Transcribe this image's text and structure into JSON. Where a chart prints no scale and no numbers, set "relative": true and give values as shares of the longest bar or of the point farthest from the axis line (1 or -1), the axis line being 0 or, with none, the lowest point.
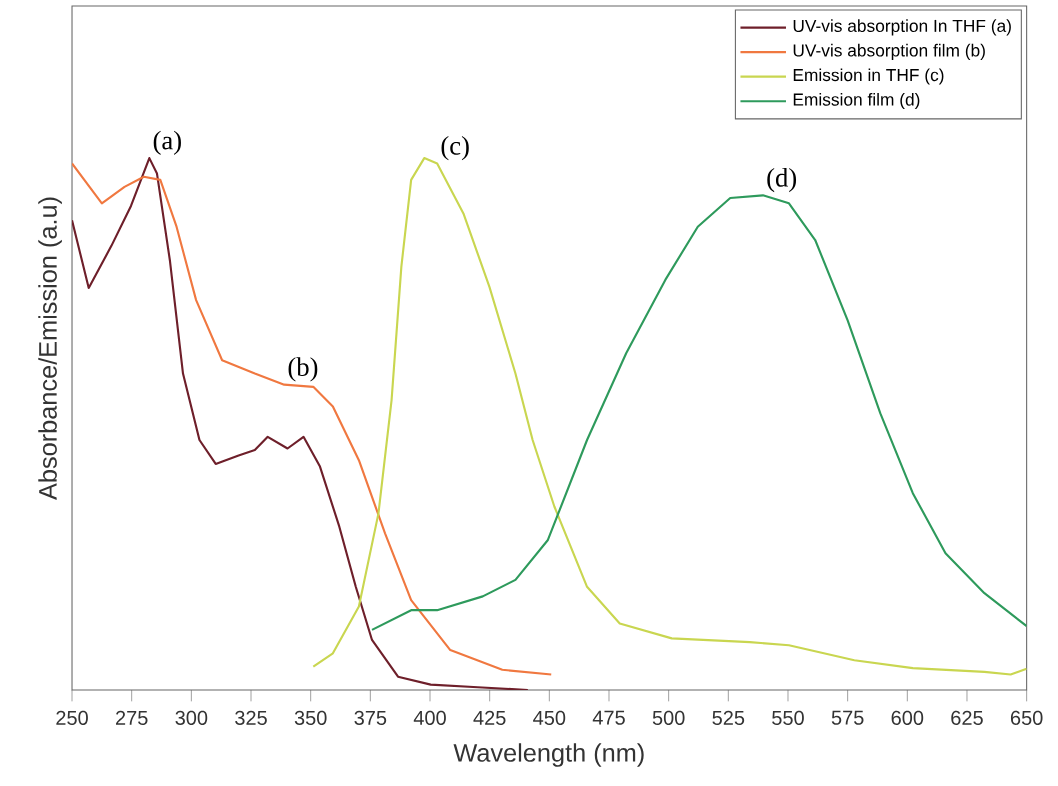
{
  "chart_data": {
    "type": "line",
    "relative": true,
    "xlabel": "Wavelength (nm)",
    "ylabel": "Absorbance/Emission (a.u)",
    "xlim": [
      250,
      650
    ],
    "xticks": [
      250,
      275,
      300,
      325,
      350,
      375,
      400,
      425,
      450,
      475,
      500,
      525,
      550,
      575,
      600,
      625,
      650
    ],
    "legend": "top right",
    "series": [
      {
        "name": "UV-vis absorption In THF (a)",
        "color": "#6e1f2a",
        "x": [
          250,
          257,
          266.5,
          274.7,
          282.4,
          285.6,
          291,
          296.5,
          303.4,
          310.2,
          319.8,
          326.6,
          332,
          340.3,
          347,
          353.9,
          362,
          368.9,
          375.7,
          386.6,
          400.3,
          420,
          441
        ],
        "values": [
          0.883,
          0.756,
          0.835,
          0.91,
          1,
          0.971,
          0.808,
          0.595,
          0.47,
          0.425,
          0.441,
          0.451,
          0.476,
          0.454,
          0.476,
          0.42,
          0.307,
          0.194,
          0.094,
          0.025,
          0.01,
          0.005,
          0
        ]
      },
      {
        "name": "UV-vis absorption film (b)",
        "color": "#f07840",
        "x": [
          250,
          262.5,
          272,
          280.1,
          287,
          293.8,
          302,
          312.9,
          326.6,
          338.9,
          351.1,
          359.3,
          370.2,
          381.2,
          392.1,
          408.5,
          430.3,
          450.8
        ],
        "values": [
          0.99,
          0.915,
          0.946,
          0.965,
          0.959,
          0.871,
          0.733,
          0.62,
          0.595,
          0.574,
          0.57,
          0.533,
          0.432,
          0.294,
          0.169,
          0.075,
          0.038,
          0.029
        ]
      },
      {
        "name": "Emission in THF (c)",
        "color": "#c9d650",
        "x": [
          351.1,
          359.3,
          370.2,
          378.4,
          383.9,
          388,
          392.1,
          397.6,
          403,
          414,
          424.9,
          435.8,
          443,
          452.1,
          465.8,
          479.5,
          501.3,
          534,
          550.4,
          577.8,
          602.3,
          632.3,
          643.3,
          650
        ],
        "values": [
          0.044,
          0.069,
          0.157,
          0.332,
          0.545,
          0.796,
          0.959,
          1,
          0.99,
          0.896,
          0.758,
          0.595,
          0.47,
          0.345,
          0.194,
          0.125,
          0.097,
          0.09,
          0.084,
          0.056,
          0.041,
          0.034,
          0.029,
          0.04
        ]
      },
      {
        "name": "Emission film (d)",
        "color": "#2e9a5c",
        "x": [
          375.7,
          392.1,
          403,
          422.1,
          435.8,
          449.4,
          465.8,
          482.2,
          498.6,
          512.2,
          525.8,
          539.5,
          550.4,
          561.4,
          575,
          588.7,
          602.3,
          616,
          632.3,
          650
        ],
        "values": [
          0.113,
          0.15,
          0.15,
          0.176,
          0.207,
          0.282,
          0.47,
          0.633,
          0.771,
          0.871,
          0.925,
          0.93,
          0.915,
          0.846,
          0.695,
          0.52,
          0.37,
          0.257,
          0.182,
          0.12
        ]
      }
    ],
    "annotations": [
      {
        "text": "(a)",
        "x": 282.4,
        "y": 1
      },
      {
        "text": "(b)",
        "x": 338.9,
        "y": 0.574
      },
      {
        "text": "(c)",
        "x": 403,
        "y": 0.99
      },
      {
        "text": "(d)",
        "x": 539.5,
        "y": 0.93
      }
    ]
  }
}
